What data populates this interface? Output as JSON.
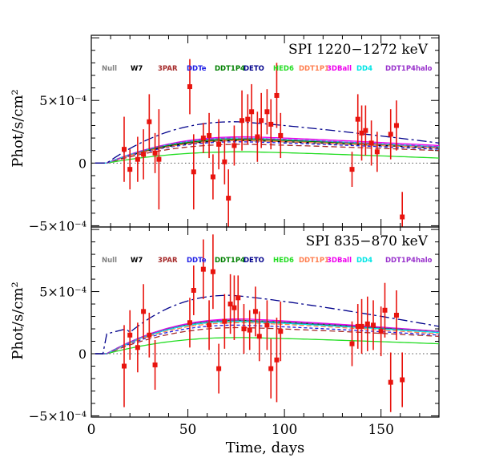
{
  "chart_data": {
    "type": "scatter",
    "xlabel": "Time, days",
    "ylabel": "Phot/s/cm²",
    "xlim": [
      0,
      180
    ],
    "xticks": [
      0,
      50,
      100,
      150
    ],
    "y_tick_labels": [
      "−5×10⁻⁴",
      "0",
      "5×10⁻⁴"
    ],
    "y_tick_values": [
      -0.0005,
      0,
      0.0005
    ],
    "legend": [
      {
        "name": "Null",
        "color": "#808080"
      },
      {
        "name": "W7",
        "color": "#000000"
      },
      {
        "name": "3PAR",
        "color": "#a52a2a"
      },
      {
        "name": "DDTe",
        "color": "#1e1ee6"
      },
      {
        "name": "DDT1P4",
        "color": "#008000"
      },
      {
        "name": "DETO",
        "color": "#00008b"
      },
      {
        "name": "HED6",
        "color": "#22dd22"
      },
      {
        "name": "DDT1P1",
        "color": "#ff7f50"
      },
      {
        "name": "3DBall",
        "color": "#ee00ee"
      },
      {
        "name": "DD4",
        "color": "#00e5e5"
      },
      {
        "name": "DDT1P4halo",
        "color": "#9932cc"
      }
    ],
    "panels": [
      {
        "title": "SPI 1220−1272 keV",
        "ylim": [
          -0.00051,
          0.00102
        ],
        "points": [
          {
            "x": 17,
            "y": 0.00011,
            "err": 0.00026
          },
          {
            "x": 20,
            "y": -5e-05,
            "err": 0.00016
          },
          {
            "x": 24,
            "y": 3e-05,
            "err": 0.00018
          },
          {
            "x": 27,
            "y": 7e-05,
            "err": 0.0002
          },
          {
            "x": 30,
            "y": 0.00033,
            "err": 0.00022
          },
          {
            "x": 33,
            "y": 8e-05,
            "err": 0.00016
          },
          {
            "x": 35,
            "y": 3e-05,
            "err": 0.0004
          },
          {
            "x": 51,
            "y": 0.00061,
            "err": 0.00022
          },
          {
            "x": 53,
            "y": -7e-05,
            "err": 0.0003
          },
          {
            "x": 58,
            "y": 0.0002,
            "err": 0.00012
          },
          {
            "x": 61,
            "y": 0.00022,
            "err": 0.00018
          },
          {
            "x": 63,
            "y": -0.00011,
            "err": 0.00018
          },
          {
            "x": 66,
            "y": 0.00015,
            "err": 0.0002
          },
          {
            "x": 69,
            "y": 1e-05,
            "err": 0.00018
          },
          {
            "x": 71,
            "y": -0.00028,
            "err": 0.00023
          },
          {
            "x": 74,
            "y": 0.00014,
            "err": 0.00016
          },
          {
            "x": 78,
            "y": 0.00034,
            "err": 0.00024
          },
          {
            "x": 81,
            "y": 0.00035,
            "err": 0.0002
          },
          {
            "x": 83,
            "y": 0.00041,
            "err": 0.00022
          },
          {
            "x": 86,
            "y": 0.00021,
            "err": 0.0002
          },
          {
            "x": 88,
            "y": 0.00034,
            "err": 0.00022
          },
          {
            "x": 91,
            "y": 0.00041,
            "err": 0.00018
          },
          {
            "x": 93,
            "y": 0.00031,
            "err": 0.0002
          },
          {
            "x": 96,
            "y": 0.00054,
            "err": 0.00026
          },
          {
            "x": 98,
            "y": 0.00022,
            "err": 0.00018
          },
          {
            "x": 135,
            "y": -5e-05,
            "err": 0.00014
          },
          {
            "x": 138,
            "y": 0.00035,
            "err": 0.0002
          },
          {
            "x": 140,
            "y": 0.00024,
            "err": 0.00022
          },
          {
            "x": 142,
            "y": 0.00026,
            "err": 0.0002
          },
          {
            "x": 145,
            "y": 0.00016,
            "err": 0.00018
          },
          {
            "x": 148,
            "y": 9e-05,
            "err": 0.00016
          },
          {
            "x": 155,
            "y": 0.00023,
            "err": 0.0002
          },
          {
            "x": 158,
            "y": 0.0003,
            "err": 0.0002
          },
          {
            "x": 161,
            "y": -0.00043,
            "err": 0.0002
          }
        ],
        "curves": [
          {
            "model": "W7",
            "peak": 0.00018,
            "peak_day": 78,
            "end": 0.00012
          },
          {
            "model": "3PAR",
            "peak": 0.00015,
            "peak_day": 80,
            "end": 0.0001
          },
          {
            "model": "DDTe",
            "peak": 0.00017,
            "peak_day": 78,
            "end": 0.00011
          },
          {
            "model": "DDT1P4",
            "peak": 0.00019,
            "peak_day": 78,
            "end": 0.00013
          },
          {
            "model": "DETO",
            "peak": 0.00033,
            "peak_day": 75,
            "end": 0.00016
          },
          {
            "model": "HED6",
            "peak": 9e-05,
            "peak_day": 80,
            "end": 4e-05
          },
          {
            "model": "DDT1P1",
            "peak": 0.00018,
            "peak_day": 80,
            "end": 0.00012
          },
          {
            "model": "3DBall",
            "peak": 0.00021,
            "peak_day": 80,
            "end": 0.00014
          },
          {
            "model": "DD4",
            "peak": 0.0002,
            "peak_day": 78,
            "end": 0.00013
          },
          {
            "model": "DDT1P4halo",
            "peak": 0.0002,
            "peak_day": 78,
            "end": 0.00013
          }
        ]
      },
      {
        "title": "SPI 835−870 keV",
        "ylim": [
          -0.00051,
          0.00102
        ],
        "points": [
          {
            "x": 17,
            "y": -0.0001,
            "err": 0.00033
          },
          {
            "x": 20,
            "y": 0.00015,
            "err": 0.0002
          },
          {
            "x": 24,
            "y": 5e-05,
            "err": 0.0002
          },
          {
            "x": 27,
            "y": 0.00034,
            "err": 0.00022
          },
          {
            "x": 30,
            "y": 0.00015,
            "err": 0.00018
          },
          {
            "x": 33,
            "y": -9e-05,
            "err": 0.0002
          },
          {
            "x": 51,
            "y": 0.00025,
            "err": 0.0002
          },
          {
            "x": 53,
            "y": 0.00051,
            "err": 0.0002
          },
          {
            "x": 58,
            "y": 0.00068,
            "err": 0.00024
          },
          {
            "x": 61,
            "y": 0.00023,
            "err": 0.0002
          },
          {
            "x": 63,
            "y": 0.00066,
            "err": 0.0003
          },
          {
            "x": 66,
            "y": -0.00012,
            "err": 0.0002
          },
          {
            "x": 69,
            "y": 0.00026,
            "err": 0.00022
          },
          {
            "x": 72,
            "y": 0.0004,
            "err": 0.00024
          },
          {
            "x": 74,
            "y": 0.00037,
            "err": 0.00026
          },
          {
            "x": 76,
            "y": 0.00045,
            "err": 0.00018
          },
          {
            "x": 79,
            "y": 0.0002,
            "err": 0.0002
          },
          {
            "x": 82,
            "y": 0.00019,
            "err": 0.00016
          },
          {
            "x": 85,
            "y": 0.00034,
            "err": 0.0002
          },
          {
            "x": 87,
            "y": 0.00014,
            "err": 0.0002
          },
          {
            "x": 91,
            "y": 0.00023,
            "err": 0.0002
          },
          {
            "x": 93,
            "y": -0.00012,
            "err": 0.00024
          },
          {
            "x": 96,
            "y": -5e-05,
            "err": 0.00034
          },
          {
            "x": 98,
            "y": 0.00018,
            "err": 0.00024
          },
          {
            "x": 135,
            "y": 8e-05,
            "err": 0.00018
          },
          {
            "x": 138,
            "y": 0.00022,
            "err": 0.00018
          },
          {
            "x": 140,
            "y": 0.00022,
            "err": 0.00022
          },
          {
            "x": 143,
            "y": 0.00024,
            "err": 0.00022
          },
          {
            "x": 146,
            "y": 0.00023,
            "err": 0.0002
          },
          {
            "x": 150,
            "y": 0.00018,
            "err": 0.0002
          },
          {
            "x": 152,
            "y": 0.00035,
            "err": 0.00022
          },
          {
            "x": 155,
            "y": -0.00023,
            "err": 0.00024
          },
          {
            "x": 158,
            "y": 0.00031,
            "err": 0.0002
          },
          {
            "x": 161,
            "y": -0.00021,
            "err": 0.00022
          }
        ],
        "curves": [
          {
            "model": "W7",
            "peak": 0.00026,
            "peak_day": 76,
            "end": 0.00018
          },
          {
            "model": "3PAR",
            "peak": 0.00021,
            "peak_day": 78,
            "end": 0.00014
          },
          {
            "model": "DDTe",
            "peak": 0.00023,
            "peak_day": 76,
            "end": 0.00015
          },
          {
            "model": "DDT1P4",
            "peak": 0.00027,
            "peak_day": 76,
            "end": 0.00018
          },
          {
            "model": "DETO",
            "peak": 0.00047,
            "peak_day": 72,
            "end": 0.00022
          },
          {
            "model": "HED6",
            "peak": 0.00013,
            "peak_day": 78,
            "end": 8e-05
          },
          {
            "model": "DDT1P1",
            "peak": 0.00025,
            "peak_day": 78,
            "end": 0.00016
          },
          {
            "model": "3DBall",
            "peak": 0.00028,
            "peak_day": 78,
            "end": 0.00018
          },
          {
            "model": "DD4",
            "peak": 0.00026,
            "peak_day": 76,
            "end": 0.00017
          },
          {
            "model": "DDT1P4halo",
            "peak": 0.00027,
            "peak_day": 76,
            "end": 0.00018
          }
        ]
      }
    ]
  }
}
